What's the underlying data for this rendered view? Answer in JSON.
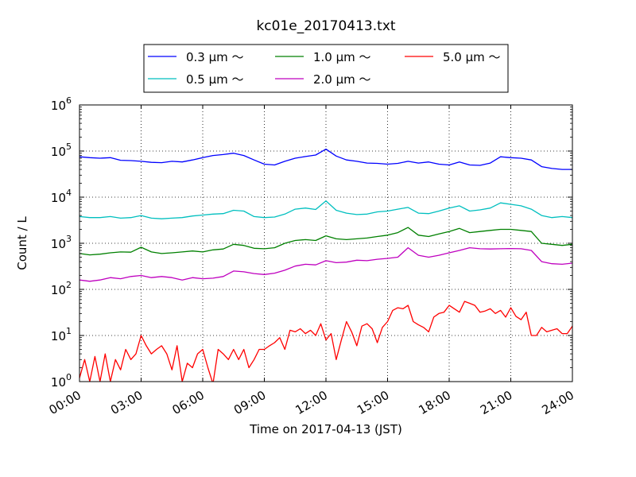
{
  "chart_data": {
    "type": "line",
    "title": "kc01e_20170413.txt",
    "xlabel": "Time on 2017-04-13 (JST)",
    "ylabel": "Count / L",
    "y_scale": "log",
    "ylim": [
      1,
      1000000
    ],
    "xlim": [
      "00:00",
      "24:00"
    ],
    "x_unit": "hour",
    "grid": true,
    "legend_position": "top-center, above plot",
    "x_ticks": [
      {
        "hour": 0,
        "label": "00:00"
      },
      {
        "hour": 3,
        "label": "03:00"
      },
      {
        "hour": 6,
        "label": "06:00"
      },
      {
        "hour": 9,
        "label": "09:00"
      },
      {
        "hour": 12,
        "label": "12:00"
      },
      {
        "hour": 15,
        "label": "15:00"
      },
      {
        "hour": 18,
        "label": "18:00"
      },
      {
        "hour": 21,
        "label": "21:00"
      },
      {
        "hour": 24,
        "label": "24:00"
      }
    ],
    "y_ticks": [
      {
        "value": 1,
        "base": "10",
        "exp": "0"
      },
      {
        "value": 10,
        "base": "10",
        "exp": "1"
      },
      {
        "value": 100,
        "base": "10",
        "exp": "2"
      },
      {
        "value": 1000,
        "base": "10",
        "exp": "3"
      },
      {
        "value": 10000,
        "base": "10",
        "exp": "4"
      },
      {
        "value": 100000,
        "base": "10",
        "exp": "5"
      },
      {
        "value": 1000000,
        "base": "10",
        "exp": "6"
      }
    ],
    "series": [
      {
        "name": "0.3 μm ～",
        "color": "#0000ff",
        "points": [
          [
            0,
            75000
          ],
          [
            0.5,
            72000
          ],
          [
            1,
            70000
          ],
          [
            1.5,
            72000
          ],
          [
            2,
            63000
          ],
          [
            2.5,
            62000
          ],
          [
            3,
            60000
          ],
          [
            3.5,
            57000
          ],
          [
            4,
            56000
          ],
          [
            4.5,
            60000
          ],
          [
            5,
            58000
          ],
          [
            5.5,
            64000
          ],
          [
            6,
            72000
          ],
          [
            6.5,
            80000
          ],
          [
            7,
            84000
          ],
          [
            7.5,
            90000
          ],
          [
            8,
            80000
          ],
          [
            8.5,
            64000
          ],
          [
            9,
            52000
          ],
          [
            9.5,
            50000
          ],
          [
            10,
            60000
          ],
          [
            10.5,
            70000
          ],
          [
            11,
            76000
          ],
          [
            11.5,
            82000
          ],
          [
            12,
            110000
          ],
          [
            12.5,
            78000
          ],
          [
            13,
            64000
          ],
          [
            13.5,
            60000
          ],
          [
            14,
            55000
          ],
          [
            14.5,
            54000
          ],
          [
            15,
            52000
          ],
          [
            15.5,
            54000
          ],
          [
            16,
            60000
          ],
          [
            16.5,
            55000
          ],
          [
            17,
            58000
          ],
          [
            17.5,
            52000
          ],
          [
            18,
            50000
          ],
          [
            18.5,
            58000
          ],
          [
            19,
            50000
          ],
          [
            19.5,
            49000
          ],
          [
            20,
            55000
          ],
          [
            20.5,
            75000
          ],
          [
            21,
            72000
          ],
          [
            21.5,
            70000
          ],
          [
            22,
            64000
          ],
          [
            22.5,
            46000
          ],
          [
            23,
            42000
          ],
          [
            23.5,
            40000
          ],
          [
            24,
            40000
          ]
        ]
      },
      {
        "name": "0.5 μm ～",
        "color": "#00bfbf",
        "points": [
          [
            0,
            3800
          ],
          [
            0.5,
            3600
          ],
          [
            1,
            3600
          ],
          [
            1.5,
            3800
          ],
          [
            2,
            3500
          ],
          [
            2.5,
            3600
          ],
          [
            3,
            4000
          ],
          [
            3.5,
            3500
          ],
          [
            4,
            3400
          ],
          [
            4.5,
            3500
          ],
          [
            5,
            3600
          ],
          [
            5.5,
            3900
          ],
          [
            6,
            4100
          ],
          [
            6.5,
            4300
          ],
          [
            7,
            4400
          ],
          [
            7.5,
            5200
          ],
          [
            8,
            5000
          ],
          [
            8.5,
            3800
          ],
          [
            9,
            3600
          ],
          [
            9.5,
            3700
          ],
          [
            10,
            4300
          ],
          [
            10.5,
            5500
          ],
          [
            11,
            5800
          ],
          [
            11.5,
            5400
          ],
          [
            12,
            8300
          ],
          [
            12.5,
            5200
          ],
          [
            13,
            4500
          ],
          [
            13.5,
            4200
          ],
          [
            14,
            4300
          ],
          [
            14.5,
            4800
          ],
          [
            15,
            5000
          ],
          [
            15.5,
            5500
          ],
          [
            16,
            6000
          ],
          [
            16.5,
            4500
          ],
          [
            17,
            4400
          ],
          [
            17.5,
            5000
          ],
          [
            18,
            5800
          ],
          [
            18.5,
            6500
          ],
          [
            19,
            5000
          ],
          [
            19.5,
            5300
          ],
          [
            20,
            5800
          ],
          [
            20.5,
            7500
          ],
          [
            21,
            7000
          ],
          [
            21.5,
            6500
          ],
          [
            22,
            5500
          ],
          [
            22.5,
            4000
          ],
          [
            23,
            3600
          ],
          [
            23.5,
            3800
          ],
          [
            24,
            3600
          ]
        ]
      },
      {
        "name": "1.0 μm ～",
        "color": "#008000",
        "points": [
          [
            0,
            600
          ],
          [
            0.5,
            560
          ],
          [
            1,
            580
          ],
          [
            1.5,
            620
          ],
          [
            2,
            650
          ],
          [
            2.5,
            640
          ],
          [
            3,
            820
          ],
          [
            3.5,
            650
          ],
          [
            4,
            600
          ],
          [
            4.5,
            620
          ],
          [
            5,
            650
          ],
          [
            5.5,
            680
          ],
          [
            6,
            650
          ],
          [
            6.5,
            720
          ],
          [
            7,
            750
          ],
          [
            7.5,
            950
          ],
          [
            8,
            900
          ],
          [
            8.5,
            780
          ],
          [
            9,
            760
          ],
          [
            9.5,
            800
          ],
          [
            10,
            1000
          ],
          [
            10.5,
            1150
          ],
          [
            11,
            1200
          ],
          [
            11.5,
            1150
          ],
          [
            12,
            1450
          ],
          [
            12.5,
            1250
          ],
          [
            13,
            1200
          ],
          [
            13.5,
            1250
          ],
          [
            14,
            1300
          ],
          [
            14.5,
            1400
          ],
          [
            15,
            1500
          ],
          [
            15.5,
            1700
          ],
          [
            16,
            2200
          ],
          [
            16.5,
            1500
          ],
          [
            17,
            1400
          ],
          [
            17.5,
            1600
          ],
          [
            18,
            1800
          ],
          [
            18.5,
            2100
          ],
          [
            19,
            1700
          ],
          [
            19.5,
            1800
          ],
          [
            20,
            1900
          ],
          [
            20.5,
            2000
          ],
          [
            21,
            2000
          ],
          [
            21.5,
            1900
          ],
          [
            22,
            1800
          ],
          [
            22.5,
            1000
          ],
          [
            23,
            950
          ],
          [
            23.5,
            900
          ],
          [
            24,
            950
          ]
        ]
      },
      {
        "name": "2.0 μm ～",
        "color": "#bf00bf",
        "points": [
          [
            0,
            160
          ],
          [
            0.5,
            150
          ],
          [
            1,
            160
          ],
          [
            1.5,
            180
          ],
          [
            2,
            170
          ],
          [
            2.5,
            190
          ],
          [
            3,
            200
          ],
          [
            3.5,
            180
          ],
          [
            4,
            190
          ],
          [
            4.5,
            180
          ],
          [
            5,
            160
          ],
          [
            5.5,
            180
          ],
          [
            6,
            170
          ],
          [
            6.5,
            175
          ],
          [
            7,
            190
          ],
          [
            7.5,
            250
          ],
          [
            8,
            240
          ],
          [
            8.5,
            220
          ],
          [
            9,
            210
          ],
          [
            9.5,
            225
          ],
          [
            10,
            260
          ],
          [
            10.5,
            320
          ],
          [
            11,
            350
          ],
          [
            11.5,
            340
          ],
          [
            12,
            420
          ],
          [
            12.5,
            380
          ],
          [
            13,
            390
          ],
          [
            13.5,
            430
          ],
          [
            14,
            420
          ],
          [
            14.5,
            450
          ],
          [
            15,
            470
          ],
          [
            15.5,
            500
          ],
          [
            16,
            800
          ],
          [
            16.5,
            550
          ],
          [
            17,
            500
          ],
          [
            17.5,
            550
          ],
          [
            18,
            620
          ],
          [
            18.5,
            700
          ],
          [
            19,
            800
          ],
          [
            19.5,
            760
          ],
          [
            20,
            750
          ],
          [
            20.5,
            760
          ],
          [
            21,
            770
          ],
          [
            21.5,
            760
          ],
          [
            22,
            700
          ],
          [
            22.5,
            400
          ],
          [
            23,
            360
          ],
          [
            23.5,
            350
          ],
          [
            24,
            370
          ]
        ]
      },
      {
        "name": "5.0 μm ～",
        "color": "#ff0000",
        "points": [
          [
            0,
            1.2
          ],
          [
            0.25,
            3
          ],
          [
            0.5,
            1
          ],
          [
            0.75,
            3.5
          ],
          [
            1,
            1
          ],
          [
            1.25,
            4
          ],
          [
            1.5,
            1
          ],
          [
            1.75,
            3
          ],
          [
            2,
            1.8
          ],
          [
            2.25,
            5
          ],
          [
            2.5,
            3
          ],
          [
            2.75,
            4
          ],
          [
            3,
            10
          ],
          [
            3.25,
            6
          ],
          [
            3.5,
            4
          ],
          [
            3.75,
            5
          ],
          [
            4,
            6
          ],
          [
            4.25,
            4
          ],
          [
            4.5,
            1.8
          ],
          [
            4.75,
            6
          ],
          [
            5,
            1
          ],
          [
            5.25,
            2.5
          ],
          [
            5.5,
            2
          ],
          [
            5.75,
            4
          ],
          [
            6,
            5
          ],
          [
            6.25,
            2
          ],
          [
            6.5,
            0.9
          ],
          [
            6.75,
            5
          ],
          [
            7,
            4
          ],
          [
            7.25,
            3
          ],
          [
            7.5,
            5
          ],
          [
            7.75,
            3
          ],
          [
            8,
            5
          ],
          [
            8.25,
            2
          ],
          [
            8.5,
            3
          ],
          [
            8.75,
            5
          ],
          [
            9,
            5
          ],
          [
            9.25,
            6
          ],
          [
            9.5,
            7
          ],
          [
            9.75,
            9
          ],
          [
            10,
            5
          ],
          [
            10.25,
            13
          ],
          [
            10.5,
            12
          ],
          [
            10.75,
            14
          ],
          [
            11,
            11
          ],
          [
            11.25,
            13
          ],
          [
            11.5,
            10
          ],
          [
            11.75,
            18
          ],
          [
            12,
            8
          ],
          [
            12.25,
            11
          ],
          [
            12.5,
            3
          ],
          [
            12.75,
            8
          ],
          [
            13,
            20
          ],
          [
            13.25,
            12
          ],
          [
            13.5,
            6
          ],
          [
            13.75,
            16
          ],
          [
            14,
            18
          ],
          [
            14.25,
            14
          ],
          [
            14.5,
            7
          ],
          [
            14.75,
            15
          ],
          [
            15,
            20
          ],
          [
            15.25,
            35
          ],
          [
            15.5,
            40
          ],
          [
            15.75,
            38
          ],
          [
            16,
            45
          ],
          [
            16.25,
            20
          ],
          [
            16.5,
            17
          ],
          [
            16.75,
            15
          ],
          [
            17,
            12
          ],
          [
            17.25,
            25
          ],
          [
            17.5,
            30
          ],
          [
            17.75,
            32
          ],
          [
            18,
            45
          ],
          [
            18.25,
            38
          ],
          [
            18.5,
            32
          ],
          [
            18.75,
            55
          ],
          [
            19,
            50
          ],
          [
            19.25,
            45
          ],
          [
            19.5,
            32
          ],
          [
            19.75,
            34
          ],
          [
            20,
            38
          ],
          [
            20.25,
            30
          ],
          [
            20.5,
            35
          ],
          [
            20.75,
            25
          ],
          [
            21,
            40
          ],
          [
            21.25,
            26
          ],
          [
            21.5,
            22
          ],
          [
            21.75,
            32
          ],
          [
            22,
            10
          ],
          [
            22.25,
            10
          ],
          [
            22.5,
            15
          ],
          [
            22.75,
            12
          ],
          [
            23,
            13
          ],
          [
            23.25,
            14
          ],
          [
            23.5,
            11
          ],
          [
            23.75,
            11
          ],
          [
            24,
            16
          ]
        ]
      }
    ]
  }
}
